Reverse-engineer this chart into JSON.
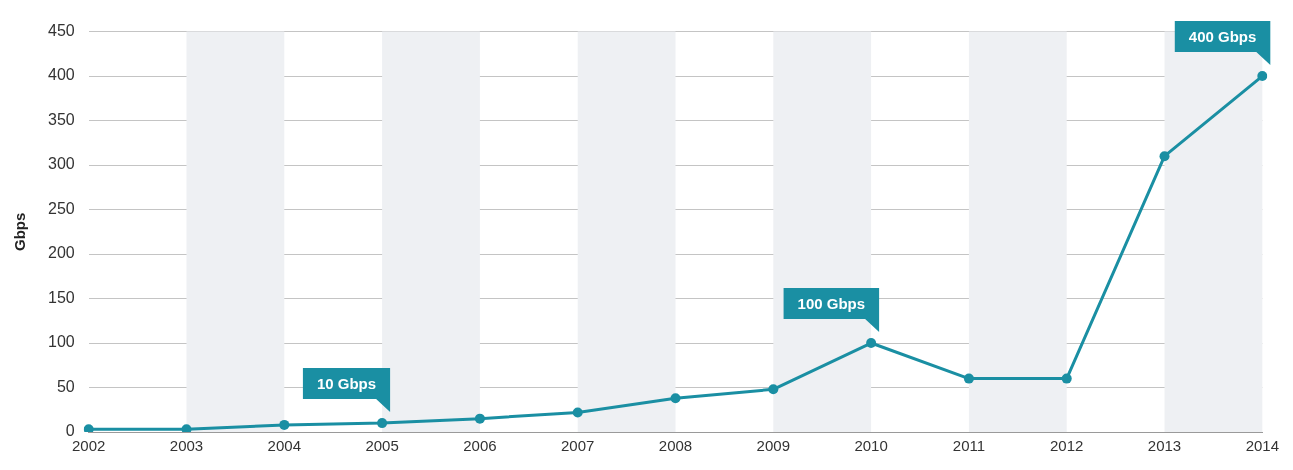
{
  "chart_data": {
    "type": "line",
    "ylabel": "Gbps",
    "categories": [
      "2002",
      "2003",
      "2004",
      "2005",
      "2006",
      "2007",
      "2008",
      "2009",
      "2010",
      "2011",
      "2012",
      "2013",
      "2014"
    ],
    "series": [
      {
        "color": "#1a8fa3",
        "values": [
          3,
          3,
          8,
          10,
          15,
          22,
          38,
          48,
          100,
          60,
          60,
          310,
          400
        ]
      }
    ],
    "ylim": [
      0,
      450
    ],
    "yticks": [
      0,
      50,
      100,
      150,
      200,
      250,
      300,
      350,
      400,
      450
    ],
    "grid": "y",
    "marker": "circle",
    "line_style": "solid",
    "legend": false,
    "bands": [
      {
        "axis": "x",
        "from": "2003",
        "to": "2004",
        "color": "#eef0f3"
      },
      {
        "axis": "x",
        "from": "2005",
        "to": "2006",
        "color": "#eef0f3"
      },
      {
        "axis": "x",
        "from": "2007",
        "to": "2008",
        "color": "#eef0f3"
      },
      {
        "axis": "x",
        "from": "2009",
        "to": "2010",
        "color": "#eef0f3"
      },
      {
        "axis": "x",
        "from": "2011",
        "to": "2012",
        "color": "#eef0f3"
      },
      {
        "axis": "x",
        "from": "2013",
        "to": "2014",
        "color": "#eef0f3"
      }
    ],
    "annotations": [
      {
        "text": "10 Gbps",
        "x": "2005",
        "y": 10
      },
      {
        "text": "100 Gbps",
        "x": "2010",
        "y": 100
      },
      {
        "text": "400 Gbps",
        "x": "2014",
        "y": 400
      }
    ]
  }
}
